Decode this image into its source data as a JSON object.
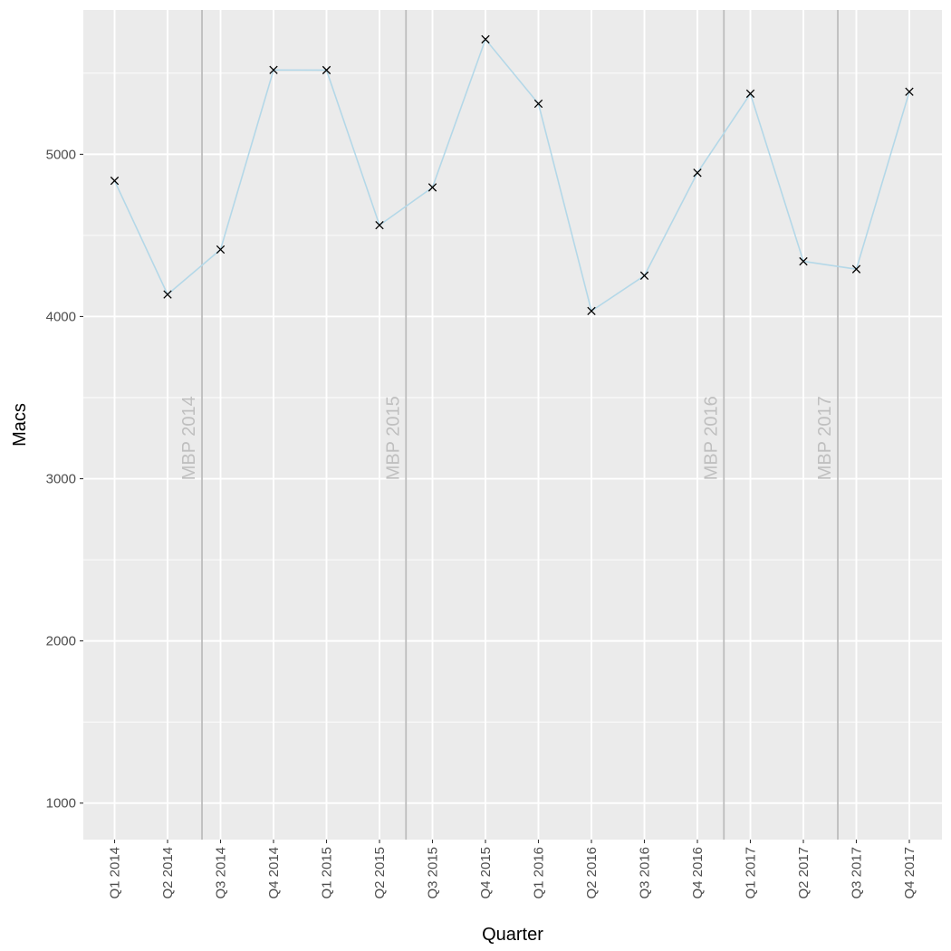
{
  "chart_data": {
    "type": "line",
    "xlabel": "Quarter",
    "ylabel": "Macs",
    "ylim": [
      775,
      5890
    ],
    "yticks": [
      1000,
      2000,
      3000,
      4000,
      5000
    ],
    "grid": true,
    "legend": "none",
    "categories": [
      "Q1 2014",
      "Q2 2014",
      "Q3 2014",
      "Q4 2014",
      "Q1 2015",
      "Q2 2015",
      "Q3 2015",
      "Q4 2015",
      "Q1 2016",
      "Q2 2016",
      "Q3 2016",
      "Q4 2016",
      "Q1 2017",
      "Q2 2017",
      "Q3 2017",
      "Q4 2017"
    ],
    "series": [
      {
        "values": [
          4837,
          4136,
          4413,
          5520,
          5519,
          4563,
          4796,
          5709,
          5312,
          4034,
          4252,
          4886,
          5374,
          4340,
          4292,
          5386
        ]
      }
    ],
    "events": [
      {
        "label": "MBP 2014",
        "after_index": 1.65
      },
      {
        "label": "MBP 2015",
        "after_index": 5.5
      },
      {
        "label": "MBP 2016",
        "after_index": 11.5
      },
      {
        "label": "MBP 2017",
        "after_index": 13.65
      }
    ],
    "colors": {
      "panel": "#ebebeb",
      "grid": "#ffffff",
      "line": "#b4d8e8",
      "marker": "#000000",
      "event_line": "#bdbdbd",
      "event_text": "#bfbfbf"
    }
  }
}
